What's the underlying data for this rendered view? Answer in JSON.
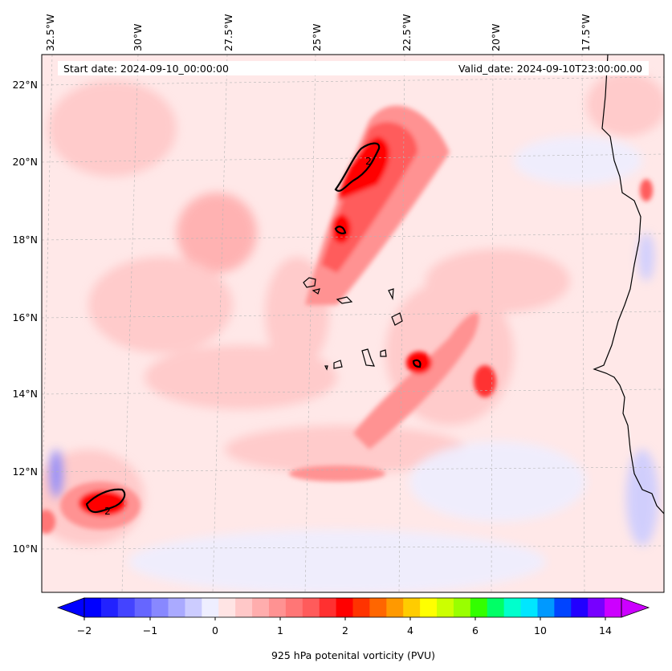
{
  "header": {
    "start_date": "Start date: 2024-09-10_00:00:00",
    "valid_date": "Valid_date: 2024-09-10T23:00:00.00"
  },
  "axes": {
    "lon_labels": [
      "32.5°W",
      "30°W",
      "27.5°W",
      "25°W",
      "22.5°W",
      "20°W",
      "17.5°W"
    ],
    "lat_labels": [
      "22°N",
      "20°N",
      "18°N",
      "16°N",
      "14°N",
      "12°N",
      "10°N"
    ]
  },
  "colorbar": {
    "label": "925 hPa potenital vorticity (PVU)",
    "ticks": [
      "−2",
      "−1",
      "0",
      "1",
      "2",
      "4",
      "6",
      "10",
      "14"
    ],
    "colors": [
      "#0000ff",
      "#2222ff",
      "#4444ff",
      "#6666ff",
      "#8888ff",
      "#aaaaff",
      "#ccccff",
      "#eeeeff",
      "#ffe4e4",
      "#ffc8c8",
      "#ffadad",
      "#ff9292",
      "#ff7676",
      "#ff5b5b",
      "#ff3030",
      "#ff0000",
      "#ff3300",
      "#ff6600",
      "#ff9900",
      "#ffcc00",
      "#ffff00",
      "#ccff00",
      "#99ff00",
      "#33ff00",
      "#00ff66",
      "#00ffcc",
      "#00e6ff",
      "#0099ff",
      "#0044ff",
      "#2200ff",
      "#7700ff",
      "#cc00ff"
    ]
  },
  "contour": {
    "label_value": "2"
  },
  "colors": {
    "background_field": "#ffe4e4",
    "coastline": "#000000",
    "contour_line": "#000000",
    "gridline": "#bbbbbb"
  }
}
